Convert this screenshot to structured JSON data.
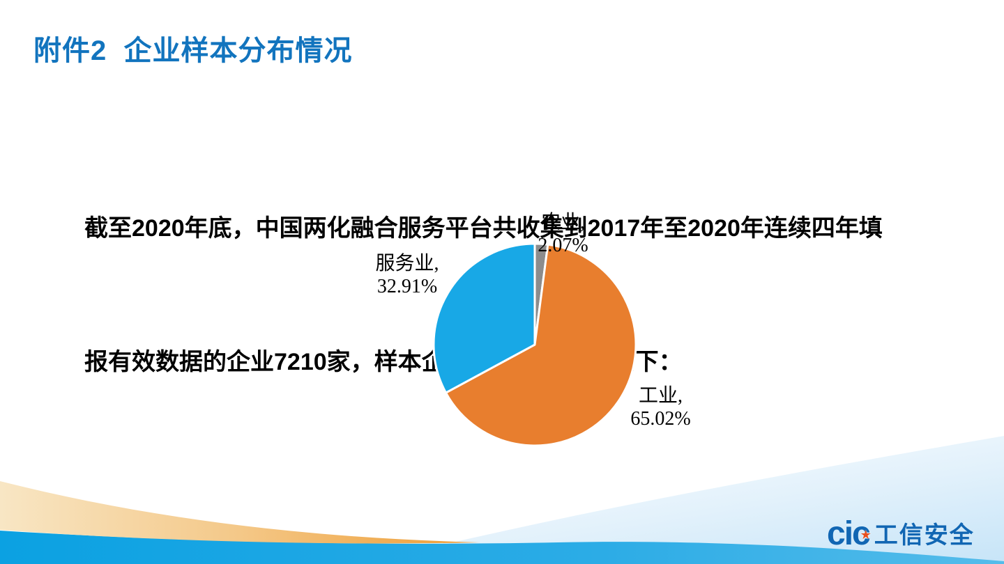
{
  "slide": {
    "title": "附件2  企业样本分布情况",
    "body": {
      "line1": "截至2020年底，中国两化融合服务平台共收集到2017年至2020年连续四年填",
      "line2": "报有效数据的企业7210家，样本企业产业分布情况如下："
    }
  },
  "chart_data": {
    "type": "pie",
    "title": "",
    "categories": [
      "农业",
      "工业",
      "服务业"
    ],
    "values": [
      2.07,
      65.02,
      32.91
    ],
    "unit": "%",
    "colors": [
      "#8C8C8C",
      "#E87E2E",
      "#18A8E6"
    ],
    "start_angle_deg": 0,
    "direction": "clockwise",
    "slice_border_color": "#FFFFFF",
    "legend": "none",
    "labels": [
      {
        "name": "农业,",
        "value": "2.07%"
      },
      {
        "name": "工业,",
        "value": "65.02%"
      },
      {
        "name": "服务业,",
        "value": "32.91%"
      }
    ]
  },
  "footer": {
    "logo": {
      "wordmark": "cic",
      "star_icon": "★",
      "name": "工信安全"
    },
    "decoration_colors": {
      "band_azure_left": "#0BA1E2",
      "band_azure_right": "#55BCEA",
      "band_orange_left": "#F8E6C4",
      "band_orange_right": "#EE9C33",
      "swoosh_light_top": "#FDFEFF",
      "swoosh_light_bottom": "#C8E5F8"
    }
  }
}
